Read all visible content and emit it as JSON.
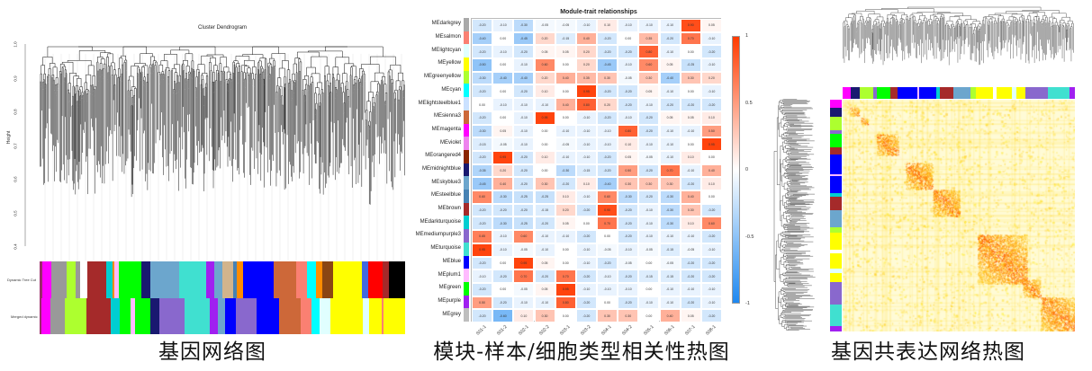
{
  "panels": {
    "dendrogram": {
      "title": "Cluster Dendrogram",
      "ylabel": "Height",
      "yticks": [
        "1.0",
        "0.9",
        "0.8",
        "0.7",
        "0.6",
        "0.5",
        "0.4"
      ],
      "bar_labels": [
        "Dynamic Tree Cut",
        "Merged dynamic"
      ],
      "caption": "基因网络图"
    },
    "module_trait": {
      "title": "Module-trait relationships",
      "caption": "模块-样本/细胞类型相关性热图"
    },
    "tom": {
      "caption": "基因共表达网络热图"
    }
  },
  "chart_data": [
    {
      "type": "heatmap",
      "title": "Module-trait relationships",
      "rows": [
        "MEdarkgrey",
        "MEsalmon",
        "MElightcyan",
        "MEyellow",
        "MEgreenyellow",
        "MEcyan",
        "MElightsteelblue1",
        "MEsienna3",
        "MEmagenta",
        "MEviolet",
        "MEorangered4",
        "MEmidnightblue",
        "MEskyblue3",
        "MEsteelblue",
        "MEbrown",
        "MEdarkturquoise",
        "MEmediumpurple3",
        "MEturquoise",
        "MEblue",
        "MEplum1",
        "MEgreen",
        "MEpurple",
        "MEgrey"
      ],
      "row_colors": [
        "#a9a9a9",
        "#fa8072",
        "#e0ffff",
        "#ffff00",
        "#adff2f",
        "#00ffff",
        "#cae1ff",
        "#cd6839",
        "#ff00ff",
        "#ee82ee",
        "#8b2500",
        "#191970",
        "#6ca6cd",
        "#4682b4",
        "#a52a2a",
        "#00ced1",
        "#8968cd",
        "#40e0d0",
        "#0000ff",
        "#ffbbff",
        "#00ff00",
        "#a020f0",
        "#bebebe"
      ],
      "columns": [
        "S01-1",
        "S01-2",
        "S02-1",
        "S02-2",
        "S03-1",
        "S03-2",
        "S04-1",
        "S04-2",
        "S05-1",
        "S06-1",
        "S07-1",
        "S08-1"
      ],
      "values": [
        [
          -0.2,
          -0.1,
          -0.3,
          -0.05,
          -0.05,
          -0.1,
          0.1,
          -0.1,
          -0.1,
          -0.1,
          0.9,
          0.05
        ],
        [
          -0.4,
          0,
          -0.45,
          0.2,
          -0.15,
          0.4,
          -0.2,
          0,
          0.35,
          -0.2,
          0.7,
          -0.1
        ],
        [
          -0.2,
          -0.1,
          -0.2,
          0.05,
          0.05,
          0.2,
          -0.2,
          -0.2,
          0.8,
          -0.1,
          0,
          -0.2
        ],
        [
          -0.5,
          0,
          -0.1,
          0.6,
          0,
          0.2,
          -0.45,
          -0.1,
          0.6,
          0.05,
          -0.25,
          -0.1
        ],
        [
          -0.3,
          -0.4,
          -0.4,
          0.2,
          0.4,
          0.35,
          0.3,
          -0.05,
          0.3,
          -0.4,
          0.3,
          0.2
        ],
        [
          -0.2,
          0,
          -0.2,
          0.1,
          0,
          0.95,
          -0.2,
          -0.2,
          0.05,
          -0.1,
          0,
          -0.1
        ],
        [
          0,
          -0.1,
          -0.1,
          -0.1,
          0.4,
          0.8,
          0.2,
          -0.2,
          -0.1,
          -0.2,
          -0.2,
          -0.2
        ],
        [
          -0.2,
          0,
          -0.1,
          0.95,
          0,
          -0.1,
          -0.2,
          -0.1,
          -0.2,
          0.05,
          0.05,
          0.1
        ],
        [
          -0.3,
          0.05,
          -0.1,
          0,
          -0.1,
          -0.1,
          -0.1,
          0.8,
          -0.2,
          -0.1,
          -0.1,
          0.5
        ],
        [
          -0.15,
          -0.05,
          -0.1,
          0,
          -0.05,
          -0.1,
          -0.1,
          0.1,
          -0.1,
          -0.1,
          0,
          0.95
        ],
        [
          -0.2,
          0.95,
          -0.2,
          0.1,
          -0.1,
          -0.1,
          -0.2,
          0.05,
          -0.05,
          -0.1,
          0.1,
          0
        ],
        [
          -0.35,
          0.2,
          -0.2,
          0,
          -0.3,
          -0.15,
          -0.2,
          0.5,
          -0.2,
          0.7,
          -0.1,
          0.4
        ],
        [
          -0.45,
          0.4,
          -0.2,
          0.3,
          -0.2,
          0.1,
          -0.4,
          0.3,
          0.3,
          0.3,
          -0.2,
          0.1
        ],
        [
          0.6,
          -0.3,
          -0.25,
          -0.25,
          0.1,
          -0.1,
          0.6,
          -0.3,
          -0.2,
          -0.3,
          0.4,
          0
        ],
        [
          -0.2,
          -0.2,
          -0.2,
          -0.15,
          0.2,
          -0.2,
          0.9,
          -0.2,
          -0.1,
          -0.3,
          0.3,
          -0.2
        ],
        [
          -0.2,
          -0.3,
          -0.25,
          -0.2,
          0.05,
          0,
          0.7,
          -0.2,
          -0.1,
          -0.3,
          0.1,
          0.6
        ],
        [
          0.65,
          -0.1,
          0.6,
          -0.1,
          -0.1,
          -0.2,
          0,
          -0.2,
          -0.1,
          -0.1,
          -0.1,
          -0.2
        ],
        [
          0.95,
          -0.1,
          -0.05,
          -0.1,
          0,
          -0.1,
          -0.05,
          -0.1,
          -0.05,
          -0.15,
          -0.05,
          -0.1
        ],
        [
          -0.2,
          0,
          0.95,
          0.05,
          0,
          -0.1,
          -0.2,
          -0.05,
          0,
          -0.05,
          -0.2,
          -0.2
        ],
        [
          -0.1,
          -0.2,
          0.7,
          -0.2,
          0.7,
          -0.2,
          -0.1,
          -0.2,
          -0.15,
          -0.15,
          -0.2,
          -0.2
        ],
        [
          -0.2,
          0,
          -0.05,
          0.05,
          0.95,
          -0.1,
          -0.1,
          -0.1,
          0,
          -0.1,
          -0.1,
          -0.1
        ],
        [
          0.5,
          -0.2,
          -0.1,
          -0.1,
          0.8,
          -0.2,
          0,
          -0.2,
          -0.1,
          -0.1,
          -0.2,
          -0.1
        ],
        [
          -0.2,
          -0.6,
          0.1,
          0.3,
          0,
          -0.2,
          0.3,
          0.3,
          0,
          0.4,
          0.05,
          -0.2
        ]
      ],
      "colorbar_ticks": [
        "1",
        "0.5",
        "0",
        "-0.5",
        "-1"
      ],
      "zlim": [
        -1,
        1
      ],
      "colors": {
        "low": "#1e88f0",
        "mid": "#ffffff",
        "high": "#ff3a00"
      }
    },
    {
      "type": "heatmap",
      "title": "",
      "description_colors": {
        "low": "#fffbd0",
        "mid": "#ffd700",
        "high": "#ff2a00"
      }
    }
  ]
}
